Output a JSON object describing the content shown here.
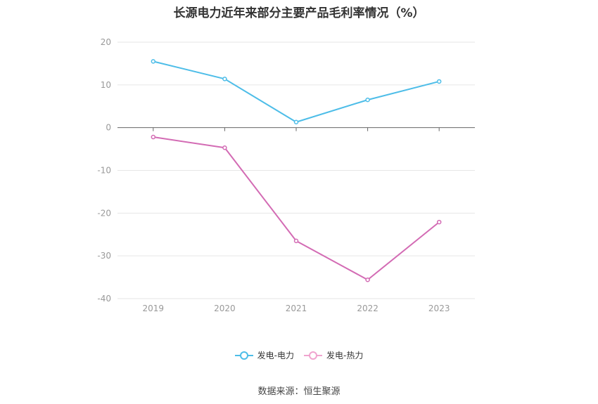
{
  "chart_data": {
    "type": "line",
    "title": "长源电力近年来部分主要产品毛利率情况（%）",
    "categories": [
      "2019",
      "2020",
      "2021",
      "2022",
      "2023"
    ],
    "series": [
      {
        "name": "发电-电力",
        "color": "#4dbde8",
        "values": [
          15.5,
          11.4,
          1.3,
          6.5,
          10.8
        ]
      },
      {
        "name": "发电-热力",
        "color": "#d36bb4",
        "values": [
          -2.2,
          -4.7,
          -26.5,
          -35.6,
          -22.1
        ]
      }
    ],
    "ylim": [
      -40,
      20
    ],
    "yticks": [
      20,
      10,
      0,
      -10,
      -20,
      -30,
      -40
    ],
    "xlabel": "",
    "ylabel": "",
    "grid": true,
    "legend": "bottom-center"
  },
  "source": "数据来源：恒生聚源"
}
